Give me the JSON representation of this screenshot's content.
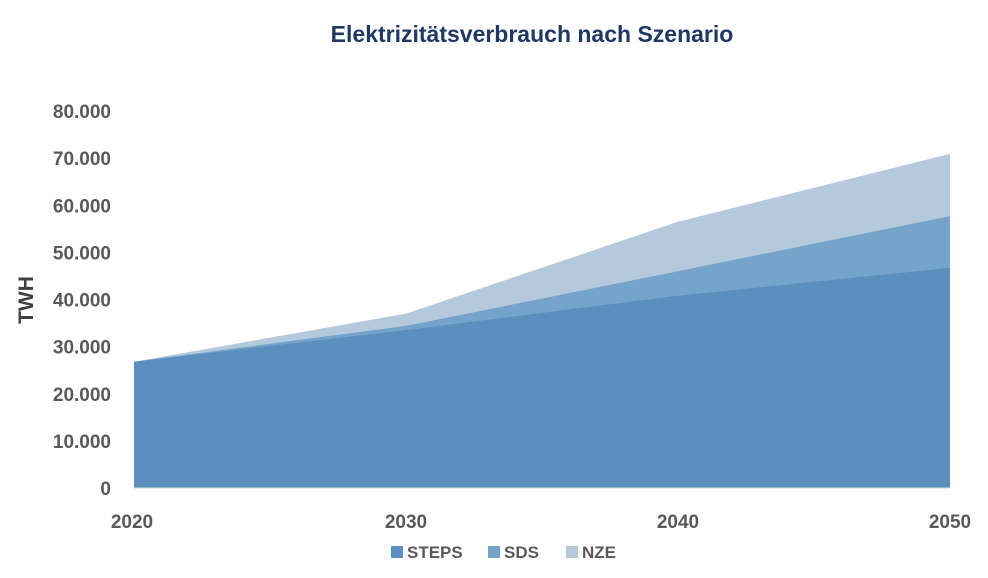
{
  "chart_data": {
    "type": "area",
    "title": "Elektrizitätsverbrauch nach Szenario",
    "xlabel": "",
    "ylabel": "TWH",
    "x": [
      2020,
      2030,
      2040,
      2050
    ],
    "x_tick_labels": [
      "2020",
      "2030",
      "2040",
      "2050"
    ],
    "ylim": [
      0,
      80000
    ],
    "y_ticks": [
      0,
      10000,
      20000,
      30000,
      40000,
      50000,
      60000,
      70000,
      80000
    ],
    "y_tick_labels": [
      "0",
      "10.000",
      "20.000",
      "30.000",
      "40.000",
      "50.000",
      "60.000",
      "70.000",
      "80.000"
    ],
    "grid": false,
    "legend_position": "bottom",
    "stacked": false,
    "series": [
      {
        "name": "STEPS",
        "values": [
          26800,
          33500,
          40800,
          46700
        ],
        "color": "#5b8fbe"
      },
      {
        "name": "SDS",
        "values": [
          26800,
          34400,
          46000,
          57700
        ],
        "color": "#75a3ca"
      },
      {
        "name": "NZE",
        "values": [
          26800,
          37000,
          56500,
          70900
        ],
        "color": "#b5c9dd"
      }
    ]
  }
}
